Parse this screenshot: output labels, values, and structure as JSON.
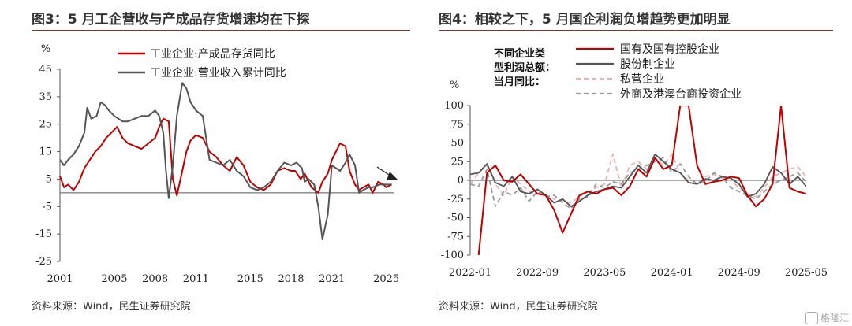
{
  "left": {
    "figure_title": "图3：5 月工企营收与产成品存货增速均在下探",
    "source": "资料来源：Wind，民生证券研究院"
  },
  "right": {
    "figure_title": "图4：相较之下，5 月国企利润负增趋势更加明显",
    "source": "资料来源：Wind，民生证券研究院"
  },
  "watermark": "格隆汇",
  "colors": {
    "red": "#c00000",
    "gray": "#555555",
    "lightpink": "#e8b4b4",
    "midgray": "#999999",
    "title_rule": "#9a2a2a"
  },
  "chart_data": [
    {
      "type": "line",
      "ylabel": "%",
      "ylim": [
        -25,
        45
      ],
      "yticks": [
        -25,
        -15,
        -5,
        5,
        15,
        25,
        35,
        45
      ],
      "xlim": [
        2001,
        2025.6
      ],
      "xticks": [
        2001,
        2005,
        2008,
        2011,
        2015,
        2018,
        2021,
        2025
      ],
      "legend_position": "top-left",
      "annotation": "down-arrow",
      "series": [
        {
          "name": "工业企业:产成品存货同比",
          "color": "#c00000",
          "x": [
            2001,
            2001.3,
            2001.6,
            2002,
            2002.4,
            2002.8,
            2003.2,
            2003.6,
            2004,
            2004.4,
            2004.8,
            2005.2,
            2005.6,
            2006,
            2006.5,
            2007,
            2007.5,
            2008,
            2008.3,
            2008.6,
            2009,
            2009.3,
            2009.6,
            2010,
            2010.3,
            2010.6,
            2011,
            2011.5,
            2012,
            2012.5,
            2013,
            2013.5,
            2014,
            2014.5,
            2015,
            2015.5,
            2016,
            2016.5,
            2017,
            2017.5,
            2018,
            2018.3,
            2018.7,
            2019,
            2019.5,
            2020,
            2020.3,
            2020.7,
            2021,
            2021.3,
            2021.6,
            2022,
            2022.3,
            2022.7,
            2023,
            2023.3,
            2023.7,
            2024,
            2024.4,
            2024.8,
            2025,
            2025.4
          ],
          "values": [
            6,
            2,
            3,
            1,
            4,
            9,
            12,
            15,
            17,
            20,
            22,
            24,
            20,
            18,
            17,
            16,
            18,
            20,
            24,
            27,
            26,
            5,
            -1,
            8,
            15,
            19,
            21,
            20,
            15,
            13,
            10,
            8,
            13,
            10,
            4,
            2,
            1,
            3,
            8,
            9,
            8,
            8,
            5,
            7,
            2,
            0,
            4,
            7,
            12,
            15,
            18,
            17,
            8,
            3,
            1,
            2,
            3,
            0,
            4,
            3,
            2,
            3
          ]
        },
        {
          "name": "工业企业:营业收入累计同比",
          "color": "#555555",
          "x": [
            2001,
            2001.3,
            2001.6,
            2002,
            2002.4,
            2002.8,
            2003,
            2003.3,
            2003.7,
            2004,
            2004.3,
            2004.6,
            2005,
            2005.3,
            2005.6,
            2006,
            2006.5,
            2007,
            2007.5,
            2008,
            2008.3,
            2008.6,
            2008.8,
            2009,
            2009.3,
            2009.6,
            2010,
            2010.3,
            2010.6,
            2011,
            2011.5,
            2012,
            2012.5,
            2013,
            2013.5,
            2014,
            2014.5,
            2015,
            2015.5,
            2016,
            2016.5,
            2017,
            2017.5,
            2018,
            2018.4,
            2018.8,
            2019,
            2019.3,
            2019.7,
            2020,
            2020.3,
            2020.7,
            2021,
            2021.3,
            2021.6,
            2022,
            2022.3,
            2022.7,
            2023,
            2023.3,
            2023.7,
            2024,
            2024.5,
            2025,
            2025.4
          ],
          "values": [
            12,
            10,
            12,
            14,
            17,
            22,
            31,
            27,
            28,
            33,
            32,
            30,
            28,
            27,
            26,
            26,
            27,
            28,
            28,
            30,
            28,
            22,
            8,
            -2,
            10,
            28,
            40,
            38,
            33,
            30,
            28,
            12,
            11,
            10,
            12,
            8,
            6,
            2,
            1,
            2,
            4,
            8,
            11,
            10,
            11,
            9,
            4,
            5,
            3,
            -5,
            -17,
            -8,
            10,
            9,
            8,
            11,
            14,
            10,
            0,
            1,
            2,
            2,
            3,
            3,
            3
          ]
        }
      ]
    },
    {
      "type": "line",
      "ylabel": "%",
      "ylim": [
        -100,
        100
      ],
      "yticks": [
        -100,
        -75,
        -50,
        -25,
        0,
        25,
        50,
        75,
        100
      ],
      "xticks": [
        "2022-01",
        "2022-09",
        "2023-05",
        "2024-01",
        "2024-09",
        "2025-05"
      ],
      "x_months": 41,
      "legend_position": "top-right",
      "legend_note": [
        "不同企业类",
        "型利润总额：",
        "当月同比："
      ],
      "series": [
        {
          "name": "国有及国有控股企业",
          "color": "#c00000",
          "style": "solid",
          "values": [
            null,
            -100,
            10,
            20,
            0,
            -2,
            8,
            -5,
            -18,
            -20,
            -40,
            -70,
            -45,
            -20,
            -15,
            -18,
            -12,
            -10,
            -20,
            -8,
            15,
            5,
            30,
            15,
            20,
            120,
            120,
            20,
            -5,
            -2,
            0,
            5,
            3,
            -20,
            -35,
            -25,
            -5,
            130,
            -10,
            -15,
            -18
          ]
        },
        {
          "name": "股份制企业",
          "color": "#555555",
          "style": "solid",
          "values": [
            8,
            10,
            22,
            -3,
            -8,
            5,
            -15,
            -18,
            -12,
            -20,
            -30,
            -25,
            -35,
            -28,
            -20,
            -15,
            -12,
            -8,
            -10,
            5,
            20,
            10,
            35,
            25,
            15,
            10,
            -3,
            -5,
            2,
            0,
            5,
            3,
            -5,
            -22,
            -18,
            -5,
            18,
            10,
            -5,
            5,
            -8
          ]
        },
        {
          "name": "私营企业",
          "color": "#e8b4b4",
          "style": "dashed",
          "values": [
            -5,
            10,
            20,
            -5,
            -20,
            5,
            -5,
            -15,
            -18,
            -20,
            -25,
            -28,
            -30,
            -22,
            -15,
            -10,
            -5,
            35,
            -10,
            20,
            25,
            15,
            30,
            20,
            35,
            10,
            0,
            -5,
            5,
            8,
            3,
            0,
            -10,
            -18,
            -22,
            -10,
            5,
            10,
            15,
            18,
            5
          ]
        },
        {
          "name": "外商及港澳台商投资企业",
          "color": "#999999",
          "style": "dashed",
          "values": [
            -5,
            -8,
            15,
            -35,
            -15,
            -20,
            -10,
            -28,
            -15,
            -22,
            -20,
            -30,
            -38,
            -25,
            -22,
            -5,
            -10,
            -2,
            -5,
            10,
            15,
            20,
            25,
            30,
            10,
            22,
            5,
            -5,
            -2,
            10,
            5,
            -10,
            -15,
            -20,
            -25,
            -15,
            -5,
            0,
            5,
            10,
            -2
          ]
        }
      ]
    }
  ]
}
